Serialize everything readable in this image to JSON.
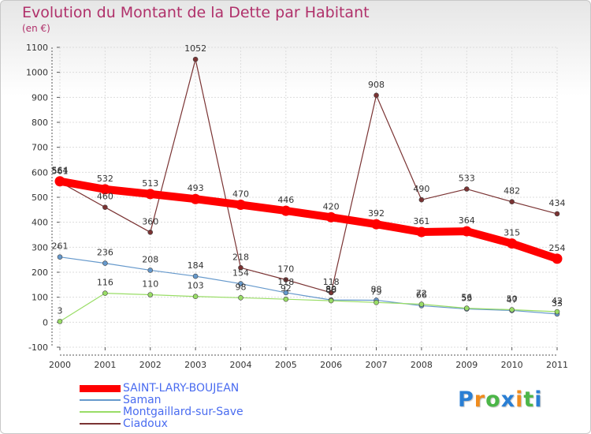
{
  "chart_data": {
    "type": "line",
    "title": "Evolution du Montant de la Dette par Habitant",
    "subtitle": "(en €)",
    "xlabel": "",
    "ylabel": "",
    "ylim": [
      -100,
      1100
    ],
    "yticks": [
      "-100",
      "0",
      "100",
      "200",
      "300",
      "400",
      "500",
      "600",
      "700",
      "800",
      "900",
      "1000",
      "1100"
    ],
    "categories": [
      "2000",
      "2001",
      "2002",
      "2003",
      "2004",
      "2005",
      "2006",
      "2007",
      "2008",
      "2009",
      "2010",
      "2011"
    ],
    "grid": true,
    "legend_position": "bottom-left",
    "series": [
      {
        "name": "SAINT-LARY-BOUJEAN",
        "color": "#ff0000",
        "values": [
          564,
          532,
          513,
          493,
          470,
          446,
          420,
          392,
          361,
          364,
          315,
          254
        ],
        "labels": [
          "564",
          "532",
          "513",
          "493",
          "470",
          "446",
          "420",
          "392",
          "361",
          "364",
          "315",
          "254"
        ]
      },
      {
        "name": "Saman",
        "color": "#6699cc",
        "values": [
          261,
          236,
          208,
          184,
          154,
          118,
          89,
          88,
          66,
          53,
          47,
          33
        ],
        "labels": [
          "261",
          "236",
          "208",
          "184",
          "154",
          "118",
          "89",
          "88",
          "66",
          "53",
          "47",
          "33"
        ]
      },
      {
        "name": "Montgaillard-sur-Save",
        "color": "#99dd66",
        "values": [
          3,
          116,
          110,
          103,
          98,
          92,
          86,
          79,
          72,
          56,
          50,
          42
        ],
        "labels": [
          "3",
          "116",
          "110",
          "103",
          "98",
          "92",
          "86",
          "79",
          "72",
          "56",
          "50",
          "42"
        ]
      },
      {
        "name": "Ciadoux",
        "color": "#7a3333",
        "values": [
          561,
          460,
          360,
          1052,
          218,
          170,
          118,
          908,
          490,
          533,
          482,
          434
        ],
        "labels": [
          "561",
          "460",
          "360",
          "1052",
          "218",
          "170",
          "118",
          "908",
          "490",
          "533",
          "482",
          "434"
        ]
      }
    ]
  },
  "brand": {
    "letters": [
      "P",
      "r",
      "o",
      "x",
      "i",
      "t",
      "i"
    ],
    "colors": [
      "#2a7fd4",
      "#f08c1e",
      "#4cb648",
      "#2a7fd4",
      "#f08c1e",
      "#4cb648",
      "#2a7fd4"
    ]
  }
}
